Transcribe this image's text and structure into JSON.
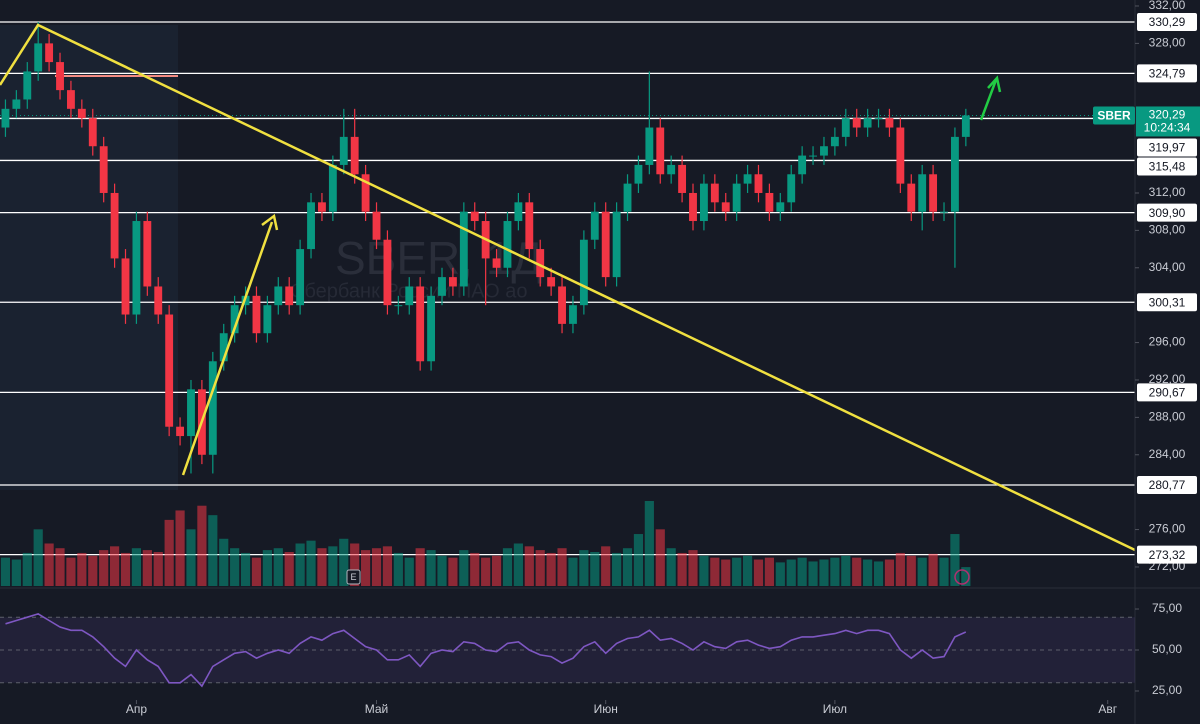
{
  "chart_data": {
    "type": "candlestick",
    "symbol": "SBER",
    "countdown": "10:24:34",
    "watermark": "SBER, 1Д",
    "watermark_subtitle": "Сбербанк России ПАО ао",
    "event_marker": "E",
    "up_color": "#089981",
    "down_color": "#f23645",
    "level_color": "#ffffff",
    "rsi_color": "#7e57c2",
    "xlim": [
      -0.5,
      103.5
    ],
    "ylim": [
      269.75,
      332.64
    ],
    "xticks": [
      {
        "value": 12,
        "label": "Апр"
      },
      {
        "value": 34,
        "label": "Май"
      },
      {
        "value": 55,
        "label": "Июн"
      },
      {
        "value": 76,
        "label": "Июл"
      },
      {
        "value": 101,
        "label": "Авг"
      }
    ],
    "yticks": [
      {
        "value": 332,
        "label": "332,00"
      },
      {
        "value": 328,
        "label": "328,00"
      },
      {
        "value": 312,
        "label": "312,00"
      },
      {
        "value": 308,
        "label": "308,00"
      },
      {
        "value": 304,
        "label": "304,00"
      },
      {
        "value": 296,
        "label": "296,00"
      },
      {
        "value": 292,
        "label": "292,00"
      },
      {
        "value": 288,
        "label": "288,00"
      },
      {
        "value": 284,
        "label": "284,00"
      },
      {
        "value": 276,
        "label": "276,00"
      },
      {
        "value": 272,
        "label": "272,00"
      }
    ],
    "last_price": {
      "value": 320.29,
      "label": "320,29"
    },
    "levels": [
      {
        "value": 330.29,
        "label": "330,29"
      },
      {
        "value": 324.79,
        "label": "324,79"
      },
      {
        "value": 319.97,
        "label": "319,97"
      },
      {
        "value": 315.48,
        "label": "315,48"
      },
      {
        "value": 309.9,
        "label": "309,90"
      },
      {
        "value": 300.31,
        "label": "300,31"
      },
      {
        "value": 290.67,
        "label": "290,67"
      },
      {
        "value": 280.77,
        "label": "280,77"
      },
      {
        "value": 273.32,
        "label": "273,32"
      }
    ],
    "candles": {
      "open": [
        319,
        321,
        322,
        325,
        328,
        326,
        323,
        321,
        320,
        317,
        312,
        305,
        299,
        309,
        302,
        299,
        287,
        286,
        291,
        284,
        294,
        297,
        300,
        301,
        297,
        300,
        302,
        300,
        306,
        311,
        310,
        315,
        318,
        314,
        310,
        307,
        300,
        300,
        302,
        294,
        301,
        303,
        302,
        310,
        309,
        305,
        304,
        309,
        311,
        306,
        303,
        302,
        298,
        300,
        307,
        310,
        303,
        310,
        313,
        315,
        319,
        314,
        315,
        312,
        309,
        313,
        311,
        310,
        313,
        314,
        312,
        310,
        311,
        314,
        316,
        316,
        317,
        318,
        320,
        319,
        320,
        320,
        319,
        313,
        310,
        314,
        310,
        310,
        318
      ],
      "high": [
        322,
        323,
        326,
        330.29,
        329,
        327,
        324,
        322,
        321,
        318,
        313,
        306,
        310,
        310,
        303,
        300,
        288,
        292,
        292,
        295,
        298,
        301,
        302,
        302,
        301,
        303,
        303,
        307,
        312,
        312,
        316,
        321,
        321,
        315,
        311,
        308,
        301,
        303,
        303,
        302,
        304,
        304,
        311,
        311,
        310,
        306,
        310,
        312,
        312,
        307,
        304,
        303,
        301,
        308,
        311,
        311,
        311,
        314,
        316,
        325,
        320,
        316,
        316,
        313,
        314,
        314,
        312,
        314,
        315,
        315,
        313,
        312,
        315,
        317,
        317,
        318,
        319,
        321,
        321,
        321,
        321,
        321,
        320,
        314,
        315,
        315,
        311,
        319,
        321
      ],
      "low": [
        318,
        320,
        321,
        324,
        325,
        322,
        320,
        319,
        316,
        311,
        304,
        298,
        298,
        301,
        298,
        286,
        285,
        282,
        283,
        282,
        293,
        296,
        299,
        296,
        296,
        299,
        299,
        299,
        305,
        309,
        309,
        314,
        313,
        309,
        306,
        299,
        299,
        299,
        293,
        293,
        300,
        301,
        301,
        308,
        300,
        303,
        303,
        308,
        305,
        302,
        301,
        297,
        297,
        299,
        306,
        302,
        302,
        309,
        312,
        314,
        313,
        313,
        311,
        308,
        308,
        310,
        309,
        309,
        312,
        311,
        309,
        309,
        310,
        313,
        315,
        315,
        316,
        317,
        318,
        318,
        319,
        318,
        312,
        309,
        308,
        309,
        309,
        304,
        317
      ],
      "close": [
        321,
        322,
        325,
        328,
        326,
        323,
        321,
        320,
        317,
        312,
        305,
        299,
        309,
        302,
        299,
        287,
        286,
        291,
        284,
        294,
        297,
        300,
        301,
        297,
        300,
        302,
        300,
        306,
        311,
        310,
        315,
        318,
        314,
        310,
        307,
        300,
        300,
        302,
        294,
        301,
        303,
        302,
        310,
        309,
        305,
        304,
        309,
        311,
        306,
        303,
        302,
        298,
        300,
        307,
        310,
        303,
        310,
        313,
        315,
        319,
        314,
        315,
        312,
        309,
        313,
        311,
        310,
        313,
        314,
        312,
        310,
        311,
        314,
        316,
        316,
        317,
        318,
        320,
        319,
        320,
        320,
        319,
        313,
        310,
        314,
        310,
        310,
        318,
        320.29
      ]
    },
    "volume": [
      30,
      28,
      35,
      60,
      45,
      40,
      30,
      35,
      32,
      38,
      42,
      35,
      40,
      38,
      36,
      70,
      80,
      60,
      85,
      75,
      50,
      40,
      35,
      30,
      38,
      40,
      36,
      45,
      48,
      40,
      42,
      50,
      45,
      38,
      40,
      42,
      35,
      30,
      40,
      38,
      32,
      30,
      38,
      35,
      30,
      32,
      40,
      45,
      42,
      38,
      35,
      40,
      30,
      38,
      36,
      42,
      35,
      40,
      55,
      90,
      60,
      40,
      35,
      38,
      32,
      30,
      28,
      30,
      32,
      28,
      30,
      25,
      28,
      30,
      26,
      28,
      30,
      32,
      30,
      28,
      26,
      28,
      35,
      32,
      30,
      34,
      30,
      55,
      20
    ],
    "rsi": {
      "ylim": [
        19.5,
        86.6
      ],
      "band": [
        30,
        70
      ],
      "yticks": [
        {
          "value": 75,
          "label": "75,00"
        },
        {
          "value": 50,
          "label": "50,00"
        },
        {
          "value": 25,
          "label": "25,00"
        }
      ],
      "values": [
        66,
        68,
        70,
        72,
        68,
        64,
        62,
        62,
        58,
        52,
        45,
        40,
        50,
        44,
        40,
        30,
        30,
        35,
        28,
        40,
        44,
        48,
        49,
        45,
        48,
        50,
        48,
        54,
        58,
        56,
        60,
        62,
        57,
        52,
        50,
        44,
        44,
        47,
        40,
        48,
        50,
        49,
        55,
        54,
        50,
        49,
        54,
        55,
        50,
        47,
        46,
        42,
        45,
        52,
        55,
        48,
        54,
        57,
        58,
        62,
        56,
        57,
        54,
        50,
        55,
        52,
        51,
        55,
        56,
        53,
        51,
        52,
        56,
        58,
        58,
        59,
        60,
        62,
        60,
        62,
        62,
        60,
        50,
        45,
        50,
        45,
        46,
        58,
        61
      ]
    }
  }
}
